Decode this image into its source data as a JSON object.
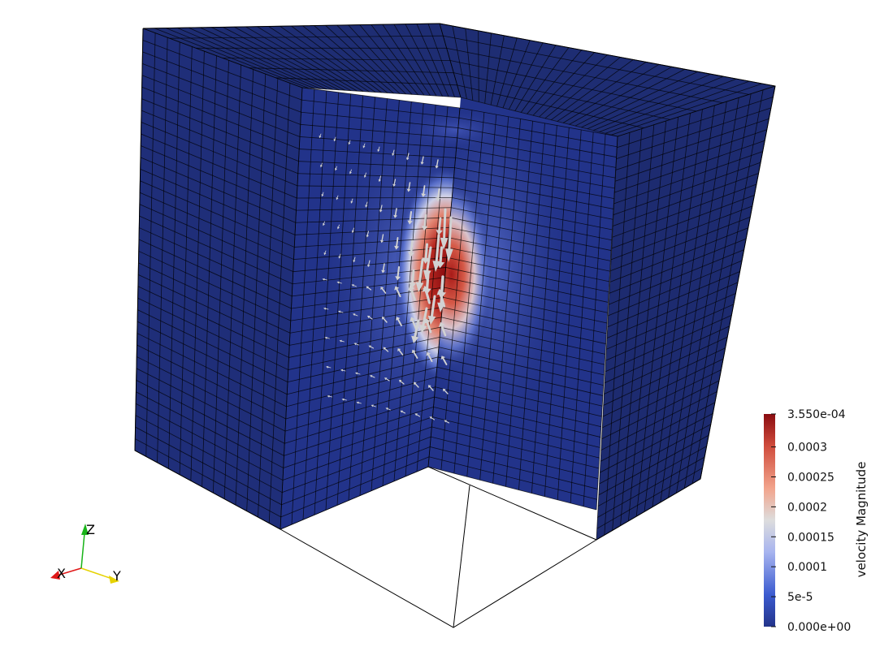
{
  "scene": {
    "field": "velocity Magnitude",
    "colormap": "Cool to Warm",
    "colors": {
      "low": "#23348a",
      "mid": "#dddddd",
      "high": "#8a0c10",
      "mesh_line": "#000000",
      "glyph": "#d2d2d2"
    }
  },
  "colorbar": {
    "title": "velocity Magnitude",
    "range": [
      0,
      0.000355
    ],
    "ticks": [
      {
        "value": 0.000355,
        "label": "3.550e-04"
      },
      {
        "value": 0.0003,
        "label": "0.0003"
      },
      {
        "value": 0.00025,
        "label": "0.00025"
      },
      {
        "value": 0.0002,
        "label": "0.0002"
      },
      {
        "value": 0.00015,
        "label": "0.00015"
      },
      {
        "value": 0.0001,
        "label": "0.0001"
      },
      {
        "value": 5e-05,
        "label": "5e-5"
      },
      {
        "value": 0,
        "label": "0.000e+00"
      }
    ]
  },
  "orientation_axes": {
    "x": {
      "label": "X",
      "color": "#e01818"
    },
    "y": {
      "label": "Y",
      "color": "#e6d200"
    },
    "z": {
      "label": "Z",
      "color": "#19b419"
    }
  }
}
